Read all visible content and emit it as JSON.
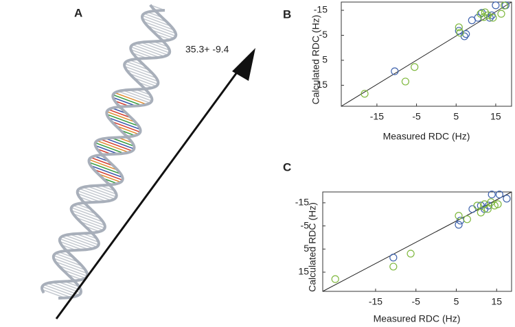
{
  "panel_a": {
    "label": "A",
    "annotation": "35.3+ -9.4"
  },
  "chart_data": [
    {
      "type": "scatter",
      "label": "B",
      "x_label": "Measured RDC (Hz)",
      "y_label": "Calculated RDC  (Hz)",
      "xlim": [
        -24,
        19
      ],
      "ylim": [
        23.4,
        -18.3
      ],
      "xticks": [
        -15,
        -5,
        5,
        15
      ],
      "yticks": [
        -15,
        -5,
        5,
        15
      ],
      "fit_x": [
        -24,
        19
      ],
      "fit_y": [
        23.4,
        -18.3
      ],
      "series": [
        {
          "color": "#3f63ad",
          "x": [
            -10.5,
            5.7,
            7.1,
            7.5,
            9,
            10.5,
            11.5,
            13.5,
            14,
            15,
            17.5
          ],
          "values": [
            9.4,
            -6.8,
            -4.6,
            -5.5,
            -11,
            -12,
            -14,
            -12,
            -13,
            -17,
            -17
          ]
        },
        {
          "color": "#7fb83e",
          "x": [
            -18.1,
            -5.5,
            -7.8,
            5.7,
            6,
            11.2,
            12,
            13,
            14.3,
            16.4,
            17.2,
            12.3
          ],
          "values": [
            18.4,
            7.7,
            13.5,
            -8.2,
            -6,
            -13.6,
            -12.3,
            -13,
            -12,
            -13.6,
            -16.9,
            -14.2
          ]
        }
      ]
    },
    {
      "type": "scatter",
      "label": "C",
      "x_label": "Measured RDC (Hz)",
      "y_label": "Calculated RDC (Hz)",
      "xlim": [
        -28.1,
        18.7
      ],
      "ylim": [
        23.3,
        -19.7
      ],
      "xticks": [
        -15,
        -5,
        5,
        15
      ],
      "yticks": [
        -15,
        -5,
        5,
        15
      ],
      "fit_x": [
        -28.1,
        18.7
      ],
      "fit_y": [
        23.3,
        -19.7
      ],
      "series": [
        {
          "color": "#3f63ad",
          "x": [
            -10.6,
            5.6,
            6,
            9,
            11.1,
            13.8,
            15.7,
            17.5,
            13,
            12
          ],
          "values": [
            8.7,
            -5.5,
            -7.3,
            -12.3,
            -13.8,
            -18.6,
            -18.6,
            -16.8,
            -13.8,
            -12.3
          ]
        },
        {
          "color": "#7fb83e",
          "x": [
            -25,
            -10.6,
            -6.3,
            5.6,
            7.7,
            10.2,
            12,
            13.6,
            14.5,
            15.3,
            12.8,
            11.1
          ],
          "values": [
            18,
            12.6,
            7,
            -9.4,
            -7.9,
            -13.8,
            -14.4,
            -15.3,
            -13.8,
            -14.4,
            -12.3,
            -10.8
          ]
        }
      ]
    }
  ]
}
